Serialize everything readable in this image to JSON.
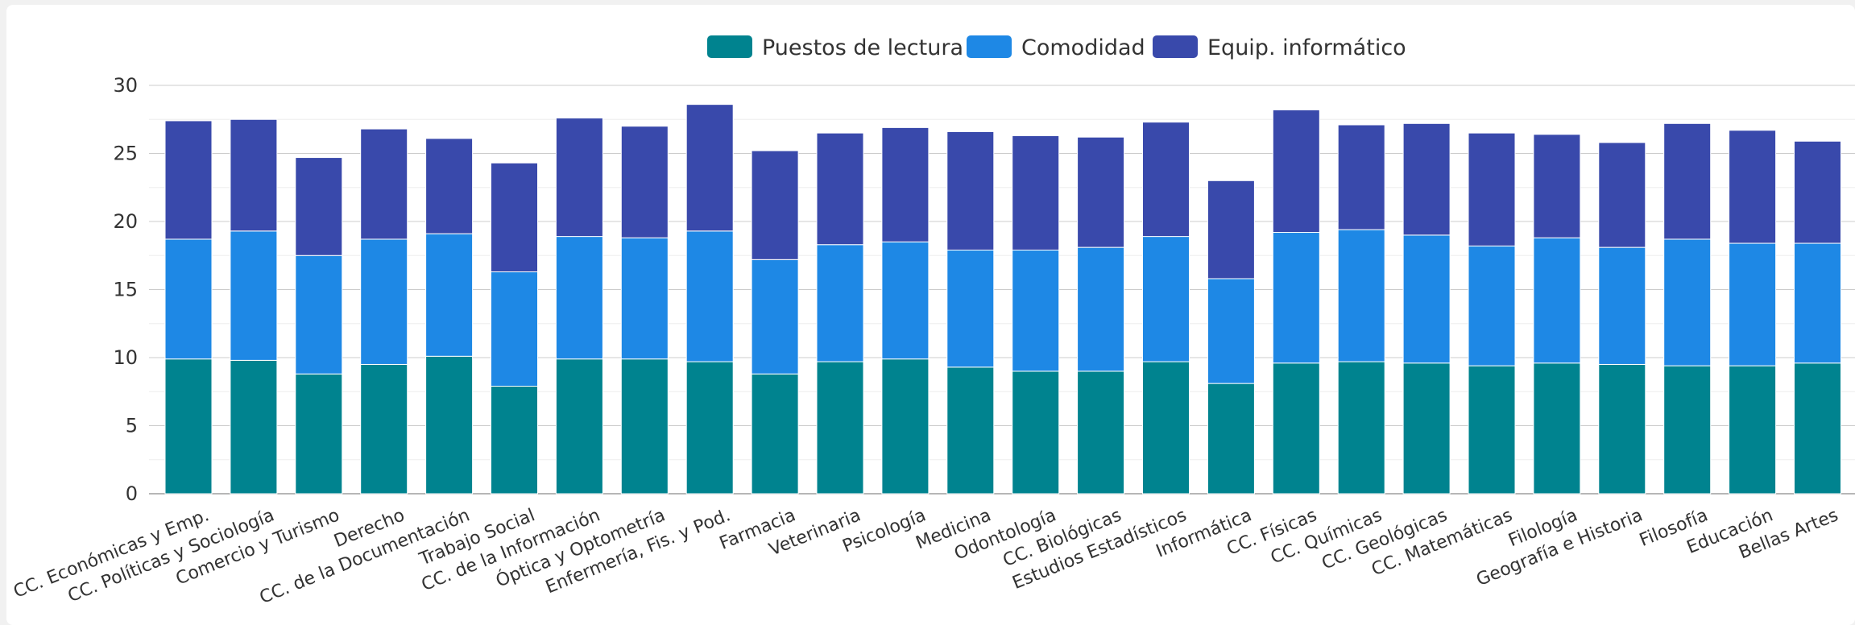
{
  "chart_data": {
    "type": "bar",
    "stacked": true,
    "categories": [
      "CC. Económicas y Emp.",
      "CC. Políticas y Sociología",
      "Comercio y Turismo",
      "Derecho",
      "CC. de la Documentación",
      "Trabajo Social",
      "CC. de la Información",
      "Óptica y Optometría",
      "Enfermería, Fis. y Pod.",
      "Farmacia",
      "Veterinaria",
      "Psicología",
      "Medicina",
      "Odontología",
      "CC. Biológicas",
      "Estudios Estadísticos",
      "Informática",
      "CC. Físicas",
      "CC. Químicas",
      "CC. Geológicas",
      "CC. Matemáticas",
      "Filología",
      "Geografía e Historia",
      "Filosofía",
      "Educación",
      "Bellas Artes"
    ],
    "series": [
      {
        "name": "Puestos de lectura",
        "color": "#00838f",
        "values": [
          9.9,
          9.8,
          8.8,
          9.5,
          10.1,
          7.9,
          9.9,
          9.9,
          9.7,
          8.8,
          9.7,
          9.9,
          9.3,
          9.0,
          9.0,
          9.7,
          8.1,
          9.6,
          9.7,
          9.6,
          9.4,
          9.6,
          9.5,
          9.4,
          9.4,
          9.6
        ]
      },
      {
        "name": "Comodidad",
        "color": "#1e88e5",
        "values": [
          8.8,
          9.5,
          8.7,
          9.2,
          9.0,
          8.4,
          9.0,
          8.9,
          9.6,
          8.4,
          8.6,
          8.6,
          8.6,
          8.9,
          9.1,
          9.2,
          7.7,
          9.6,
          9.7,
          9.4,
          8.8,
          9.2,
          8.6,
          9.3,
          9.0,
          8.8
        ]
      },
      {
        "name": "Equip. informático",
        "color": "#3949ab",
        "values": [
          8.7,
          8.2,
          7.2,
          8.1,
          7.0,
          8.0,
          8.7,
          8.2,
          9.3,
          8.0,
          8.2,
          8.4,
          8.7,
          8.4,
          8.1,
          8.4,
          7.2,
          9.0,
          7.7,
          8.2,
          8.3,
          7.6,
          7.7,
          8.5,
          8.3,
          7.5
        ]
      }
    ],
    "yticks": [
      "0",
      "5",
      "10",
      "15",
      "20",
      "25",
      "30"
    ],
    "ylim": [
      0,
      30
    ],
    "grid": true,
    "legend_position": "top"
  }
}
